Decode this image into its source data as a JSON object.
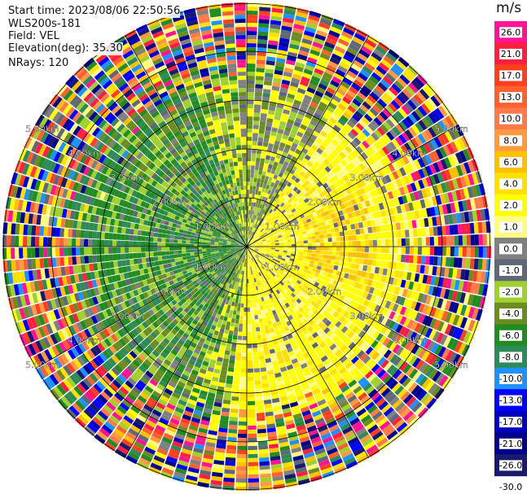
{
  "header": {
    "start_time": "Start time: 2023/08/06 22:50:56",
    "radar": "WLS200s-181",
    "field": "Field: VEL",
    "elevation": "Elevation(deg): 35.30",
    "nrays": "NRays: 120"
  },
  "colorbar": {
    "unit": "m/s",
    "labels": [
      "26.0",
      "21.0",
      "17.0",
      "13.0",
      "10.0",
      "8.0",
      "6.0",
      "4.0",
      "2.0",
      "1.0",
      "0.0",
      "-1.0",
      "-2.0",
      "-4.0",
      "-6.0",
      "-8.0",
      "-10.0",
      "-13.0",
      "-17.0",
      "-21.0",
      "-26.0",
      "-30.0"
    ],
    "colors": [
      "#ff1493",
      "#ff2040",
      "#ff4020",
      "#ff6030",
      "#ff7a4a",
      "#ff9a40",
      "#ffc000",
      "#ffe000",
      "#ffff00",
      "#fffc80",
      "#808080",
      "#606878",
      "#a0d030",
      "#6a8c20",
      "#228b22",
      "#2e8b57",
      "#1e90ff",
      "#0000ff",
      "#0000c0",
      "#00008b",
      "#191970"
    ]
  },
  "chart_data": {
    "type": "ppi",
    "title": "",
    "field": "VEL",
    "unit": "m/s",
    "nrays": 120,
    "range_rings_km": [
      "1.00km",
      "2.00km",
      "3.00km",
      "4.00km",
      "5.00km"
    ],
    "max_range_km": 5,
    "velocity_levels": [
      26.0,
      21.0,
      17.0,
      13.0,
      10.0,
      8.0,
      6.0,
      4.0,
      2.0,
      1.0,
      0.0,
      -1.0,
      -2.0,
      -4.0,
      -6.0,
      -8.0,
      -10.0,
      -13.0,
      -17.0,
      -21.0,
      -26.0,
      -30.0
    ]
  }
}
